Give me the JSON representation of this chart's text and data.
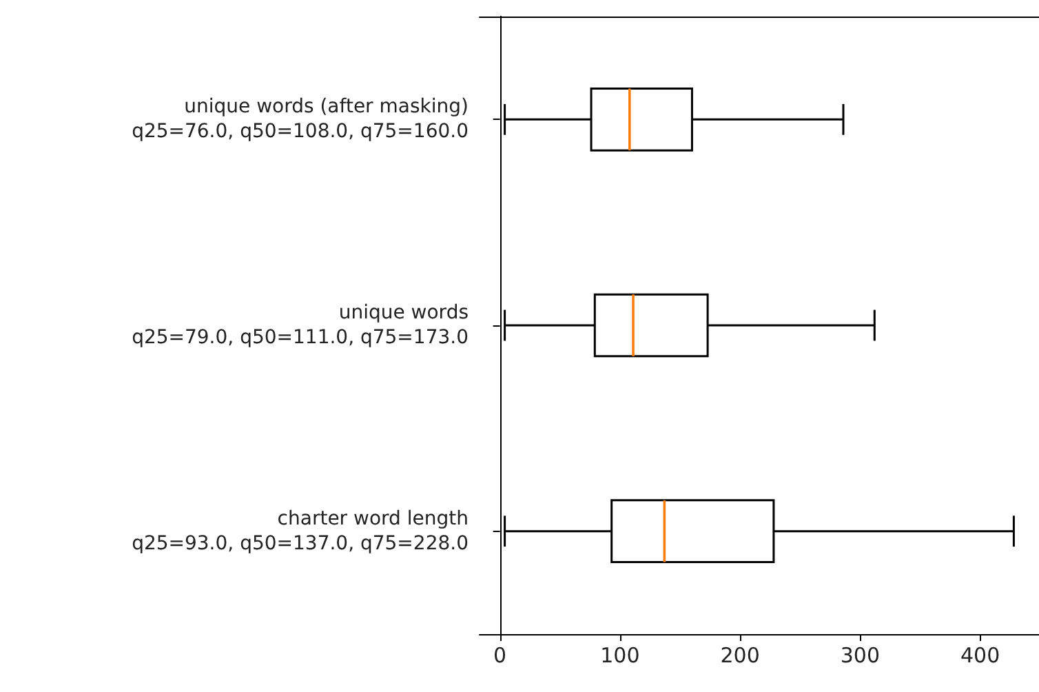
{
  "chart_data": {
    "type": "box",
    "orientation": "horizontal",
    "categories": [
      "unique words (after masking)\nq25=76.0, q50=108.0, q75=160.0",
      "unique words\nq25=79.0, q50=111.0, q75=173.0",
      "charter word length\nq25=93.0, q50=137.0, q75=228.0"
    ],
    "boxes": [
      {
        "low": 4,
        "q1": 76,
        "median": 108,
        "q3": 160,
        "high": 286
      },
      {
        "low": 4,
        "q1": 79,
        "median": 111,
        "q3": 173,
        "high": 312
      },
      {
        "low": 4,
        "q1": 93,
        "median": 137,
        "q3": 228,
        "high": 428
      }
    ],
    "color": "#000000",
    "xlim": [
      -17,
      449
    ],
    "xticks": [
      0,
      100,
      200,
      300,
      400
    ],
    "grid": false
  }
}
